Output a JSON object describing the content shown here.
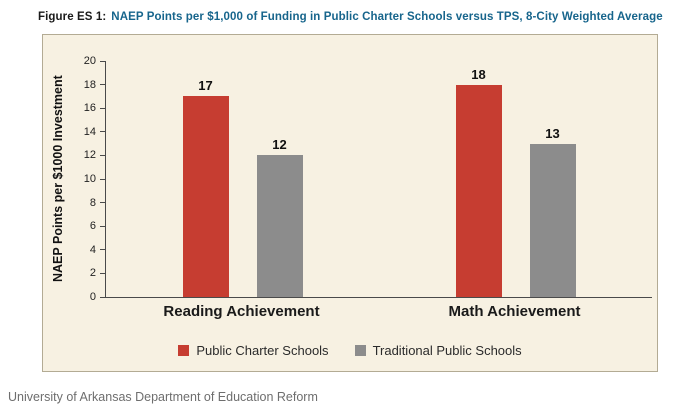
{
  "title": {
    "prefix": "Figure ES 1:",
    "text": "NAEP Points per $1,000 of Funding in Public Charter Schools versus TPS, 8-City Weighted Average"
  },
  "caption": "University of Arkansas Department of Education Reform",
  "colors": {
    "title_blue": "#17658c",
    "panel_background": "#f7f1e2",
    "panel_border": "#b3ab94",
    "charter_red": "#c63d31",
    "tps_gray": "#8c8c8c"
  },
  "chart_data": {
    "type": "bar",
    "title": "NAEP Points per $1,000 of Funding in Public Charter Schools versus TPS, 8-City Weighted Average",
    "categories": [
      "Reading Achievement",
      "Math Achievement"
    ],
    "series": [
      {
        "name": "Public Charter Schools",
        "color": "#c63d31",
        "values": [
          17,
          18
        ]
      },
      {
        "name": "Traditional Public Schools",
        "color": "#8c8c8c",
        "values": [
          12,
          13
        ]
      }
    ],
    "xlabel": "",
    "ylabel": "NAEP Points per $1000 Investment",
    "ylim": [
      0,
      20
    ],
    "ytick_step": 2,
    "grid": false,
    "legend_position": "bottom",
    "data_labels": true
  }
}
